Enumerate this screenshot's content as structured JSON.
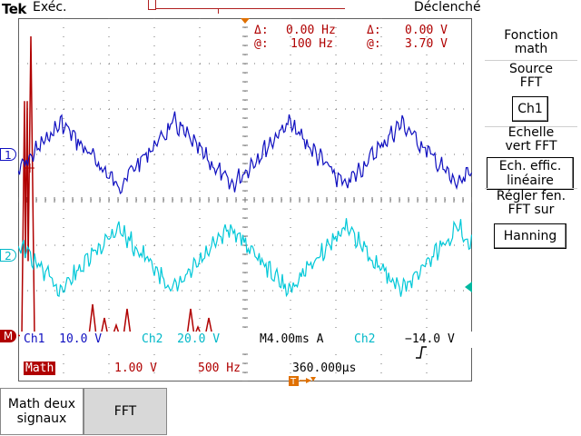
{
  "header": {
    "brand": "Tek",
    "run_state": "Exéc.",
    "trigger_state": "Déclenché"
  },
  "cursors": {
    "delta_freq_label": "Δ:",
    "delta_freq_value": "0.00 Hz",
    "at_freq_label": "@:",
    "at_freq_value": "100 Hz",
    "delta_volt_label": "Δ:",
    "delta_volt_value": "0.00 V",
    "at_volt_label": "@:",
    "at_volt_value": "3.70 V"
  },
  "channel_markers": {
    "ch1": "1",
    "ch2": "2",
    "math": "M"
  },
  "status_line_1": {
    "ch1": "Ch1  10.0 V",
    "ch2": "Ch2  20.0 V",
    "timebase": "M4.00ms A",
    "trig_source": "Ch2",
    "trig_slope_icon": "rising-edge-icon",
    "trig_level": "−14.0 V"
  },
  "status_line_2": {
    "math_label": "Math",
    "math_scale": "1.00 V",
    "math_freq": "500 Hz",
    "trig_offset_icon": "trigger-offset-icon",
    "trig_offset": "360.000µs"
  },
  "side_menu": {
    "title_line1": "Fonction",
    "title_line2": "math",
    "source_label_line1": "Source",
    "source_label_line2": "FFT",
    "source_value": "Ch1",
    "scale_label_line1": "Echelle",
    "scale_label_line2": "vert FFT",
    "scale_value_line1": "Ech. effic.",
    "scale_value_line2": "linéaire",
    "window_label_line1": "Régler fen.",
    "window_label_line2": "FFT sur",
    "window_value": "Hanning"
  },
  "bottom_menu": {
    "dual_math_line1": "Math deux",
    "dual_math_line2": "signaux",
    "fft": "FFT"
  },
  "colors": {
    "ch1": "#1010c0",
    "ch2": "#00c8d8",
    "math": "#b00000",
    "grid": "#606060"
  }
}
